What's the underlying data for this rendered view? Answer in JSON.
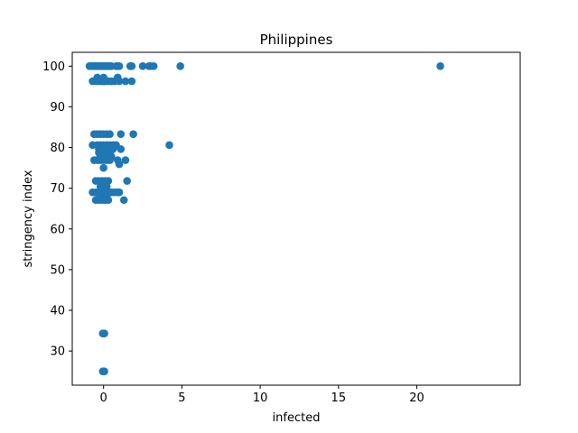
{
  "chart_data": {
    "type": "scatter",
    "title": "Philippines",
    "xlabel": "infected",
    "ylabel": "stringency index",
    "xlim": [
      -2.0,
      26.6
    ],
    "ylim": [
      21.6,
      103.4
    ],
    "xticks": [
      0,
      5,
      10,
      15,
      20
    ],
    "yticks": [
      30,
      40,
      50,
      60,
      70,
      80,
      90,
      100
    ],
    "grid": false,
    "marker_color": "#1f77b4",
    "points": [
      {
        "x": -0.9,
        "y": 100
      },
      {
        "x": -0.8,
        "y": 100
      },
      {
        "x": -0.7,
        "y": 100
      },
      {
        "x": -0.6,
        "y": 100
      },
      {
        "x": -0.5,
        "y": 100
      },
      {
        "x": -0.4,
        "y": 100
      },
      {
        "x": -0.3,
        "y": 100
      },
      {
        "x": -0.2,
        "y": 100
      },
      {
        "x": -0.1,
        "y": 100
      },
      {
        "x": 0.0,
        "y": 100
      },
      {
        "x": 0.1,
        "y": 100
      },
      {
        "x": 0.2,
        "y": 100
      },
      {
        "x": 0.3,
        "y": 100
      },
      {
        "x": 0.4,
        "y": 100
      },
      {
        "x": 0.5,
        "y": 100
      },
      {
        "x": 0.8,
        "y": 100
      },
      {
        "x": 0.9,
        "y": 100
      },
      {
        "x": 1.0,
        "y": 100
      },
      {
        "x": 1.7,
        "y": 100
      },
      {
        "x": 1.8,
        "y": 100
      },
      {
        "x": 2.5,
        "y": 100
      },
      {
        "x": 2.9,
        "y": 100
      },
      {
        "x": 3.0,
        "y": 100
      },
      {
        "x": 3.2,
        "y": 100
      },
      {
        "x": 4.9,
        "y": 100
      },
      {
        "x": 21.5,
        "y": 100
      },
      {
        "x": -0.7,
        "y": 96.3
      },
      {
        "x": -0.5,
        "y": 96.3
      },
      {
        "x": -0.3,
        "y": 96.3
      },
      {
        "x": -0.1,
        "y": 96.3
      },
      {
        "x": 0.0,
        "y": 96.3
      },
      {
        "x": 0.1,
        "y": 96.3
      },
      {
        "x": 0.3,
        "y": 96.3
      },
      {
        "x": 0.5,
        "y": 96.3
      },
      {
        "x": 0.7,
        "y": 96.3
      },
      {
        "x": 1.0,
        "y": 96.3
      },
      {
        "x": 1.4,
        "y": 96.3
      },
      {
        "x": 1.8,
        "y": 96.3
      },
      {
        "x": -0.4,
        "y": 97.2
      },
      {
        "x": 0.0,
        "y": 97.2
      },
      {
        "x": 0.9,
        "y": 97.2
      },
      {
        "x": -0.6,
        "y": 83.3
      },
      {
        "x": -0.4,
        "y": 83.3
      },
      {
        "x": -0.2,
        "y": 83.3
      },
      {
        "x": 0.0,
        "y": 83.3
      },
      {
        "x": 0.2,
        "y": 83.3
      },
      {
        "x": 0.4,
        "y": 83.3
      },
      {
        "x": 1.1,
        "y": 83.3
      },
      {
        "x": 1.9,
        "y": 83.3
      },
      {
        "x": -0.7,
        "y": 80.6
      },
      {
        "x": -0.4,
        "y": 80.6
      },
      {
        "x": -0.2,
        "y": 80.6
      },
      {
        "x": 0.0,
        "y": 80.6
      },
      {
        "x": 0.2,
        "y": 80.6
      },
      {
        "x": 0.4,
        "y": 80.6
      },
      {
        "x": 0.6,
        "y": 80.6
      },
      {
        "x": 0.8,
        "y": 80.6
      },
      {
        "x": 4.2,
        "y": 80.6
      },
      {
        "x": -0.3,
        "y": 79.6
      },
      {
        "x": 0.0,
        "y": 79.6
      },
      {
        "x": 0.3,
        "y": 79.6
      },
      {
        "x": 0.6,
        "y": 79.6
      },
      {
        "x": 1.1,
        "y": 79.6
      },
      {
        "x": -0.3,
        "y": 78.7
      },
      {
        "x": -0.1,
        "y": 78.7
      },
      {
        "x": 0.1,
        "y": 78.7
      },
      {
        "x": 0.4,
        "y": 78.7
      },
      {
        "x": -0.2,
        "y": 77.8
      },
      {
        "x": 0.0,
        "y": 77.8
      },
      {
        "x": 0.2,
        "y": 77.8
      },
      {
        "x": 0.5,
        "y": 77.8
      },
      {
        "x": -0.6,
        "y": 76.9
      },
      {
        "x": -0.4,
        "y": 76.9
      },
      {
        "x": -0.2,
        "y": 76.9
      },
      {
        "x": 0.0,
        "y": 76.9
      },
      {
        "x": 0.2,
        "y": 76.9
      },
      {
        "x": 0.4,
        "y": 76.9
      },
      {
        "x": 0.9,
        "y": 76.9
      },
      {
        "x": 1.4,
        "y": 76.9
      },
      {
        "x": 1.0,
        "y": 75.9
      },
      {
        "x": 0.0,
        "y": 75.0
      },
      {
        "x": -0.5,
        "y": 71.8
      },
      {
        "x": -0.3,
        "y": 71.8
      },
      {
        "x": -0.1,
        "y": 71.8
      },
      {
        "x": 0.1,
        "y": 71.8
      },
      {
        "x": 0.3,
        "y": 71.8
      },
      {
        "x": 1.5,
        "y": 71.8
      },
      {
        "x": -0.2,
        "y": 70.4
      },
      {
        "x": 0.0,
        "y": 70.4
      },
      {
        "x": 0.2,
        "y": 70.4
      },
      {
        "x": -0.7,
        "y": 69.0
      },
      {
        "x": -0.5,
        "y": 69.0
      },
      {
        "x": -0.3,
        "y": 69.0
      },
      {
        "x": -0.1,
        "y": 69.0
      },
      {
        "x": 0.1,
        "y": 69.0
      },
      {
        "x": 0.3,
        "y": 69.0
      },
      {
        "x": 0.5,
        "y": 69.0
      },
      {
        "x": 0.7,
        "y": 69.0
      },
      {
        "x": 0.9,
        "y": 69.0
      },
      {
        "x": 1.0,
        "y": 69.0
      },
      {
        "x": -0.2,
        "y": 68.1
      },
      {
        "x": 0.0,
        "y": 68.1
      },
      {
        "x": 0.2,
        "y": 68.1
      },
      {
        "x": -0.5,
        "y": 67.1
      },
      {
        "x": -0.3,
        "y": 67.1
      },
      {
        "x": -0.1,
        "y": 67.1
      },
      {
        "x": 0.1,
        "y": 67.1
      },
      {
        "x": 0.3,
        "y": 67.1
      },
      {
        "x": 1.3,
        "y": 67.1
      },
      {
        "x": 0.0,
        "y": 34.3
      },
      {
        "x": 0.05,
        "y": 34.3
      },
      {
        "x": -0.05,
        "y": 34.3
      },
      {
        "x": 0.0,
        "y": 25.0
      },
      {
        "x": 0.05,
        "y": 25.0
      },
      {
        "x": -0.05,
        "y": 25.0
      }
    ]
  }
}
